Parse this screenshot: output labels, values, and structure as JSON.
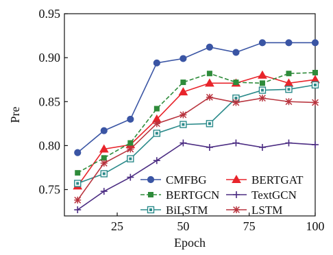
{
  "chart_data": {
    "type": "line",
    "title": "",
    "xlabel": "Epoch",
    "ylabel": "Pre",
    "x": [
      10,
      20,
      30,
      40,
      50,
      60,
      70,
      80,
      90,
      100
    ],
    "xlim": [
      5,
      100
    ],
    "ylim": [
      0.72,
      0.95
    ],
    "xticks": [
      25,
      50,
      75,
      100
    ],
    "yticks": [
      0.75,
      0.8,
      0.85,
      0.9,
      0.95
    ],
    "xtick_labels": [
      "25",
      "50",
      "75",
      "100"
    ],
    "ytick_labels": [
      "0.75",
      "0.80",
      "0.85",
      "0.90",
      "0.95"
    ],
    "grid": false,
    "legend_position": "bottom-right",
    "series": [
      {
        "name": "CMFBG",
        "color": "#3a55a4",
        "marker": "circle",
        "dash": "solid",
        "values": [
          0.792,
          0.817,
          0.83,
          0.894,
          0.899,
          0.912,
          0.906,
          0.917,
          0.917,
          0.917
        ]
      },
      {
        "name": "BERTGAT",
        "color": "#e8242b",
        "marker": "triangle",
        "dash": "solid",
        "values": [
          0.754,
          0.796,
          0.801,
          0.83,
          0.861,
          0.871,
          0.871,
          0.88,
          0.871,
          0.875
        ]
      },
      {
        "name": "BERTGCN",
        "color": "#2e8b3a",
        "marker": "square",
        "dash": "dashed",
        "values": [
          0.769,
          0.786,
          0.803,
          0.842,
          0.872,
          0.882,
          0.872,
          0.871,
          0.882,
          0.883
        ]
      },
      {
        "name": "TextGCN",
        "color": "#4b2c82",
        "marker": "plus",
        "dash": "solid",
        "values": [
          0.727,
          0.748,
          0.764,
          0.783,
          0.803,
          0.798,
          0.803,
          0.798,
          0.803,
          0.801
        ]
      },
      {
        "name": "BiLSTM",
        "color": "#2a8a8a",
        "marker": "boxsquare",
        "dash": "solid",
        "values": [
          0.757,
          0.768,
          0.785,
          0.814,
          0.824,
          0.825,
          0.854,
          0.863,
          0.864,
          0.869
        ]
      },
      {
        "name": "LSTM",
        "color": "#b8343e",
        "marker": "asterisk",
        "dash": "solid",
        "values": [
          0.738,
          0.78,
          0.796,
          0.825,
          0.835,
          0.855,
          0.849,
          0.854,
          0.85,
          0.849
        ]
      }
    ]
  }
}
